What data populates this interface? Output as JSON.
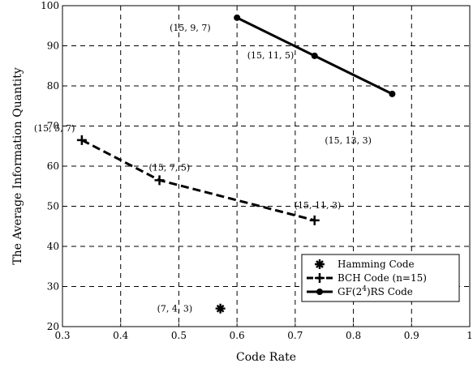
{
  "chart_data": {
    "type": "line",
    "xlabel": "Code Rate",
    "ylabel": "The Average Information Quantity",
    "xlim": [
      0.3,
      1.0
    ],
    "ylim": [
      20,
      100
    ],
    "xticks": [
      0.3,
      0.4,
      0.5,
      0.6,
      0.7,
      0.8,
      0.9,
      1.0
    ],
    "xtick_labels": [
      "0.3",
      "0.4",
      "0.5",
      "0.6",
      "0.7",
      "0.8",
      "0.9",
      "1"
    ],
    "yticks": [
      20,
      30,
      40,
      50,
      60,
      70,
      80,
      90,
      100
    ],
    "ytick_labels": [
      "20",
      "30",
      "40",
      "50",
      "60",
      "70",
      "80",
      "90",
      "100"
    ],
    "grid": true,
    "legend_position": "bottom-right",
    "series": [
      {
        "name": "Hamming Code",
        "marker": "star",
        "line": "none",
        "color": "#000000",
        "x": [
          0.5714
        ],
        "y": [
          24.5
        ],
        "labels": [
          "(7, 4, 3)"
        ]
      },
      {
        "name": "BCH Code (n=15)",
        "marker": "plus",
        "line": "dashed",
        "color": "#000000",
        "x": [
          0.3333,
          0.4667,
          0.7333
        ],
        "y": [
          66.5,
          56.5,
          46.5
        ],
        "labels": [
          "(15, 5, 7)",
          "(15, 7, 5)",
          "(15, 11, 3)"
        ]
      },
      {
        "name": "GF(2^4)RS Code",
        "marker": "circle",
        "line": "solid",
        "color": "#000000",
        "x": [
          0.6,
          0.7333,
          0.8667
        ],
        "y": [
          97,
          87.5,
          78
        ],
        "labels": [
          "(15, 9, 7)",
          "(15, 11, 5)",
          "(15, 13, 3)"
        ]
      }
    ],
    "legend": {
      "hamming": "Hamming Code",
      "bch": "BCH Code (n=15)",
      "rs_prefix": "GF(2",
      "rs_sup": "4",
      "rs_suffix": ")RS Code"
    }
  }
}
